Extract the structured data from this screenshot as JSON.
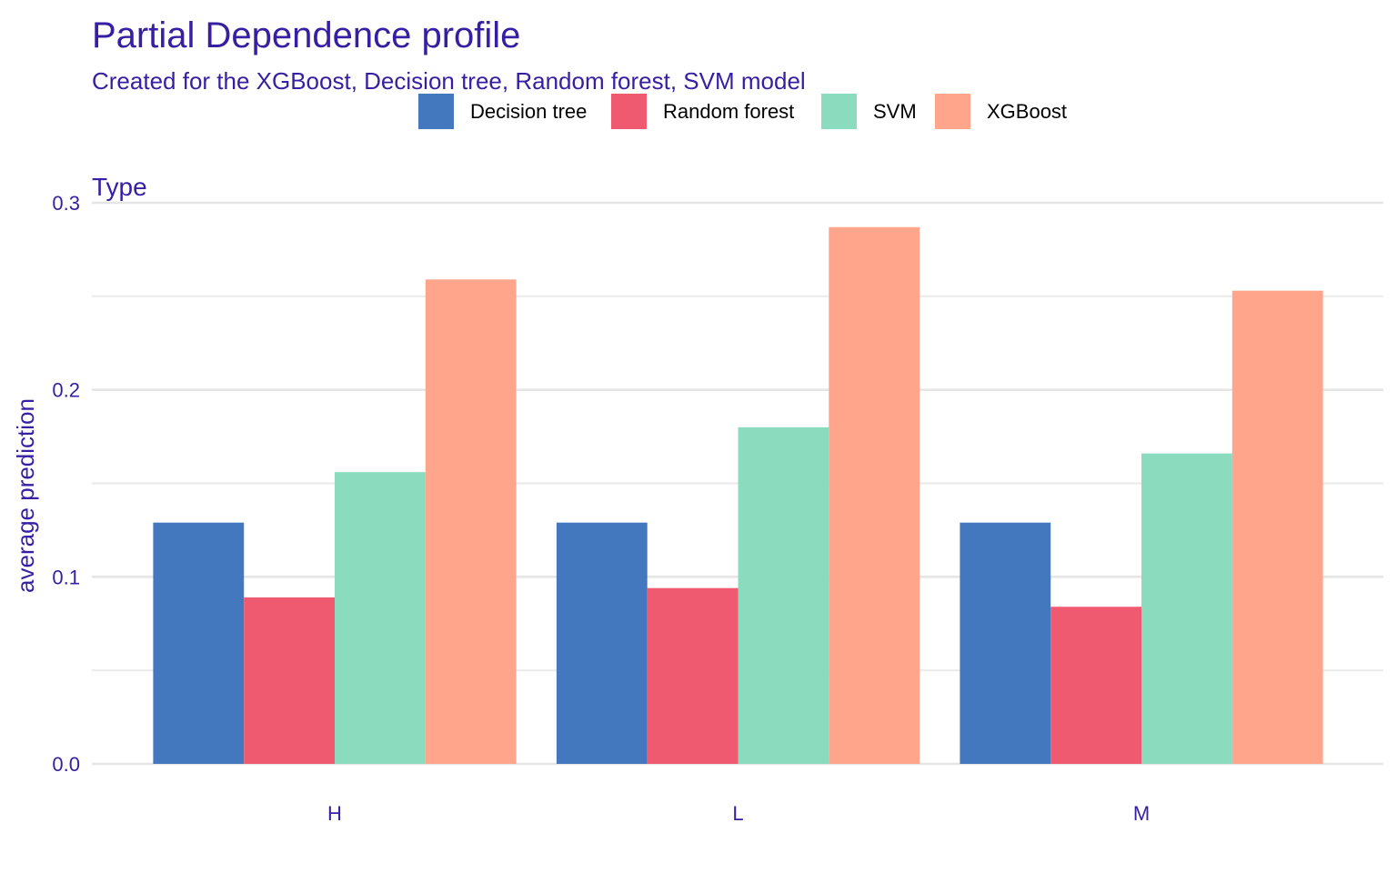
{
  "chart_data": {
    "type": "bar",
    "title": "Partial Dependence profile",
    "subtitle": "Created for the XGBoost, Decision tree, Random forest, SVM model",
    "facet_label": "Type",
    "xlabel": "",
    "ylabel": "average prediction",
    "ylim": [
      0,
      0.3
    ],
    "yticks": [
      "0.0",
      "0.1",
      "0.2",
      "0.3"
    ],
    "grid": true,
    "legend_position": "top",
    "categories": [
      "H",
      "L",
      "M"
    ],
    "series": [
      {
        "name": "Decision tree",
        "color": "#4378bf",
        "values": [
          0.129,
          0.129,
          0.129
        ]
      },
      {
        "name": "Random forest",
        "color": "#f05a71",
        "values": [
          0.089,
          0.094,
          0.084
        ]
      },
      {
        "name": "SVM",
        "color": "#8bdcbe",
        "values": [
          0.156,
          0.18,
          0.166
        ]
      },
      {
        "name": "XGBoost",
        "color": "#ffa58c",
        "values": [
          0.259,
          0.287,
          0.253
        ]
      }
    ]
  }
}
